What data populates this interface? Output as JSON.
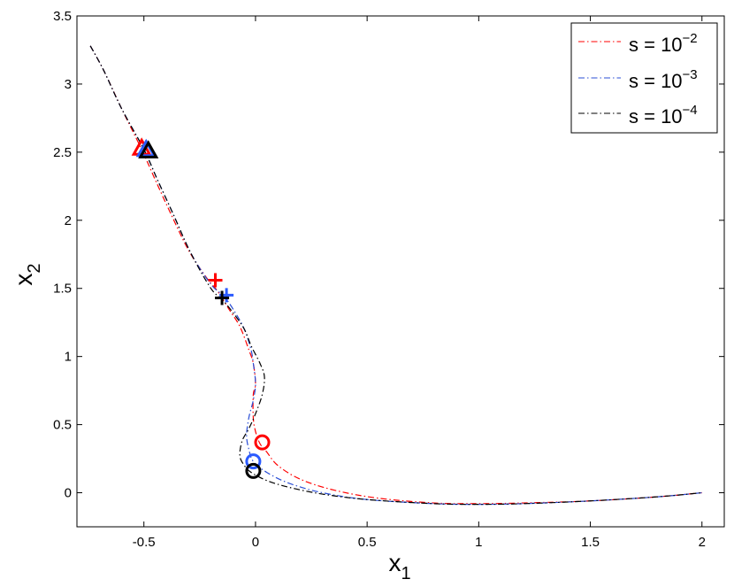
{
  "chart_data": {
    "type": "line",
    "xlabel": {
      "base": "x",
      "sub": "1"
    },
    "ylabel": {
      "base": "x",
      "sub": "2"
    },
    "xlim": [
      -0.8,
      2.1
    ],
    "ylim": [
      -0.25,
      3.5
    ],
    "x_ticks": [
      -0.5,
      0,
      0.5,
      1,
      1.5,
      2
    ],
    "x_tick_labels": [
      "-0.5",
      "0",
      "0.5",
      "1",
      "1.5",
      "2"
    ],
    "y_ticks": [
      0,
      0.5,
      1,
      1.5,
      2,
      2.5,
      3,
      3.5
    ],
    "y_tick_labels": [
      "0",
      "0.5",
      "1",
      "1.5",
      "2",
      "2.5",
      "3",
      "3.5"
    ],
    "grid": false,
    "legend_position": "top-right",
    "series": [
      {
        "name": "s = 10^{-2}",
        "legend_prefix": "s = 10",
        "legend_exp": "−2",
        "color": "#ff0000",
        "marker_color": "#ff0000",
        "x": [
          -0.74,
          -0.68,
          -0.6,
          -0.51,
          -0.45,
          -0.38,
          -0.3,
          -0.22,
          -0.17,
          -0.12,
          -0.07,
          -0.03,
          -0.01,
          0.0,
          -0.01,
          -0.01,
          0.0,
          0.02,
          0.05,
          0.1,
          0.2,
          0.35,
          0.55,
          0.8,
          1.0,
          1.2,
          1.5,
          1.8,
          2.0
        ],
        "y": [
          3.28,
          3.1,
          2.82,
          2.52,
          2.3,
          2.05,
          1.78,
          1.58,
          1.48,
          1.35,
          1.22,
          1.05,
          0.95,
          0.8,
          0.72,
          0.55,
          0.45,
          0.36,
          0.3,
          0.2,
          0.1,
          0.02,
          -0.04,
          -0.075,
          -0.08,
          -0.075,
          -0.06,
          -0.03,
          0.0
        ]
      },
      {
        "name": "s = 10^{-3}",
        "legend_prefix": "s = 10",
        "legend_exp": "−3",
        "color": "#2b4fd6",
        "marker_color": "#2b5bff",
        "x": [
          -0.74,
          -0.68,
          -0.6,
          -0.5,
          -0.44,
          -0.37,
          -0.29,
          -0.2,
          -0.14,
          -0.09,
          -0.05,
          -0.02,
          -0.01,
          0.0,
          -0.01,
          -0.03,
          -0.04,
          -0.03,
          -0.01,
          0.05,
          0.15,
          0.3,
          0.5,
          0.8,
          1.0,
          1.2,
          1.5,
          1.8,
          2.0
        ],
        "y": [
          3.28,
          3.1,
          2.82,
          2.52,
          2.3,
          2.05,
          1.76,
          1.53,
          1.44,
          1.32,
          1.2,
          1.05,
          0.95,
          0.8,
          0.68,
          0.55,
          0.42,
          0.32,
          0.23,
          0.15,
          0.07,
          0.0,
          -0.05,
          -0.08,
          -0.085,
          -0.08,
          -0.06,
          -0.03,
          0.0
        ]
      },
      {
        "name": "s = 10^{-4}",
        "legend_prefix": "s = 10",
        "legend_exp": "−4",
        "color": "#000000",
        "marker_color": "#000000",
        "x": [
          -0.74,
          -0.68,
          -0.6,
          -0.5,
          -0.44,
          -0.37,
          -0.29,
          -0.2,
          -0.15,
          -0.1,
          -0.05,
          -0.02,
          0.02,
          0.04,
          0.03,
          0.0,
          -0.03,
          -0.06,
          -0.07,
          -0.05,
          -0.02,
          0.05,
          0.15,
          0.3,
          0.5,
          0.8,
          1.0,
          1.2,
          1.5,
          1.8,
          2.0
        ],
        "y": [
          3.28,
          3.1,
          2.82,
          2.52,
          2.3,
          2.05,
          1.76,
          1.5,
          1.42,
          1.32,
          1.2,
          1.08,
          0.95,
          0.85,
          0.72,
          0.58,
          0.47,
          0.38,
          0.27,
          0.2,
          0.15,
          0.09,
          0.04,
          -0.01,
          -0.05,
          -0.08,
          -0.085,
          -0.08,
          -0.06,
          -0.03,
          0.0
        ]
      }
    ],
    "markers": [
      {
        "series": 0,
        "shape": "triangle",
        "x": -0.51,
        "y": 2.53
      },
      {
        "series": 1,
        "shape": "triangle",
        "x": -0.49,
        "y": 2.52
      },
      {
        "series": 2,
        "shape": "triangle",
        "x": -0.48,
        "y": 2.51
      },
      {
        "series": 0,
        "shape": "plus",
        "x": -0.18,
        "y": 1.56
      },
      {
        "series": 1,
        "shape": "plus",
        "x": -0.13,
        "y": 1.45
      },
      {
        "series": 2,
        "shape": "plus",
        "x": -0.15,
        "y": 1.43
      },
      {
        "series": 0,
        "shape": "circle",
        "x": 0.03,
        "y": 0.37
      },
      {
        "series": 1,
        "shape": "circle",
        "x": -0.01,
        "y": 0.23
      },
      {
        "series": 2,
        "shape": "circle",
        "x": -0.01,
        "y": 0.16
      }
    ]
  }
}
